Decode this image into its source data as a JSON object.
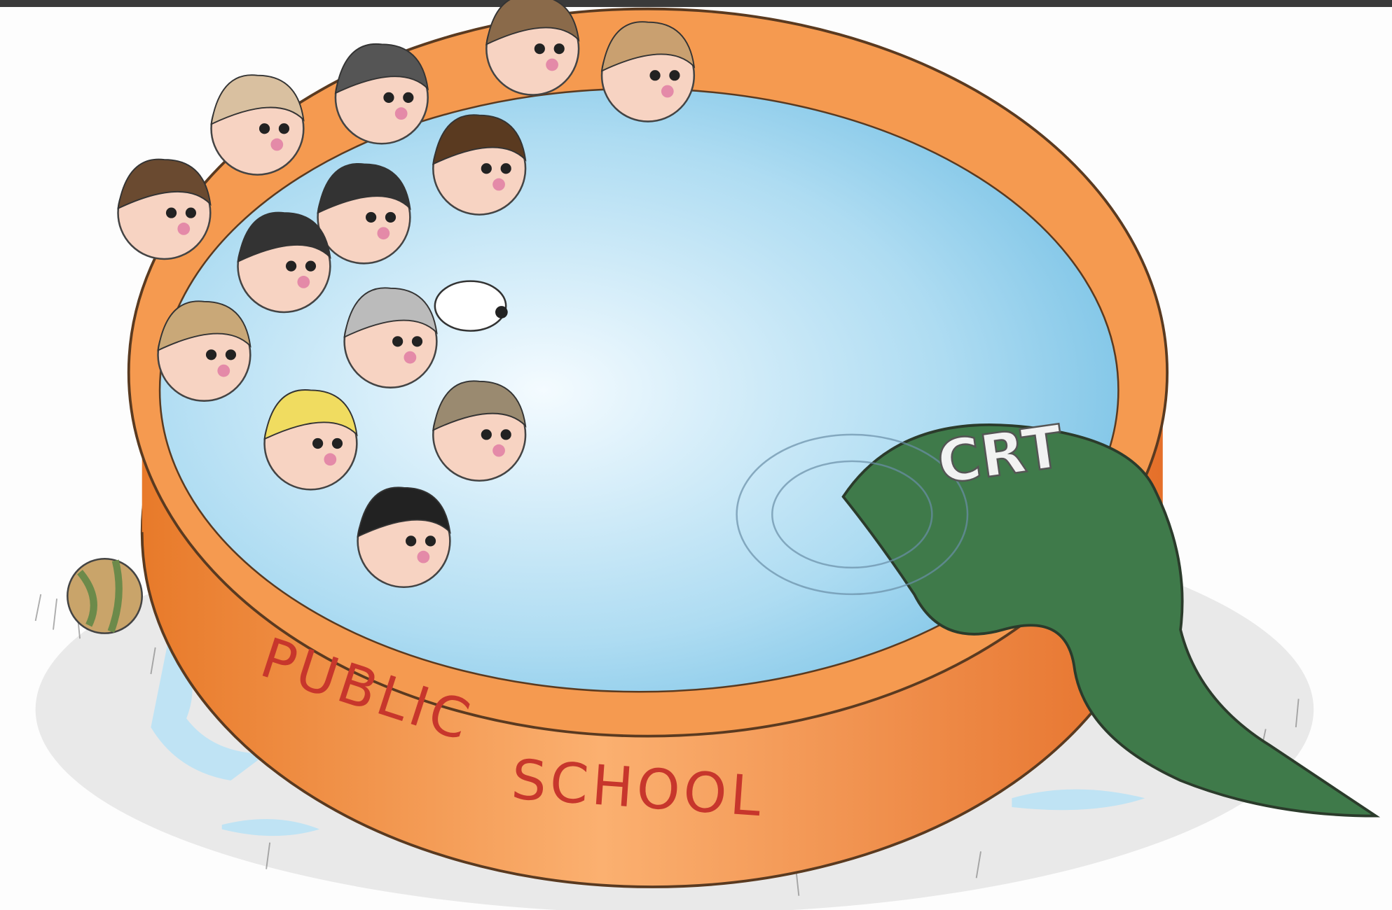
{
  "labels": {
    "pool_word_1": "PUBLIC",
    "pool_word_2": "SCHOOL",
    "tail": "CRT"
  }
}
